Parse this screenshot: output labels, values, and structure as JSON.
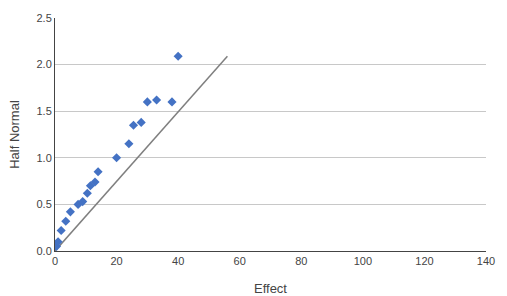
{
  "chart_data": {
    "type": "scatter",
    "xlabel": "Effect",
    "ylabel": "Half Normal",
    "series": [
      {
        "type": "line",
        "color": "#7f7f7f",
        "line_style": "solid",
        "x": [
          0,
          56
        ],
        "values": [
          0,
          2.09
        ]
      },
      {
        "type": "scatter",
        "color": "#4472C4",
        "marker": "diamond",
        "x": [
          0.5,
          1.0,
          2.0,
          3.5,
          5.0,
          7.5,
          9.0,
          10.5,
          11.5,
          13.0,
          14.0,
          20.0,
          24.0,
          25.5,
          28.0,
          30.0,
          33.0,
          38.0,
          40.0
        ],
        "values": [
          0.05,
          0.1,
          0.22,
          0.32,
          0.42,
          0.5,
          0.53,
          0.62,
          0.7,
          0.74,
          0.85,
          1.0,
          1.15,
          1.35,
          1.38,
          1.6,
          1.62,
          1.6,
          2.09
        ]
      }
    ],
    "xlim": [
      0,
      140
    ],
    "ylim": [
      0,
      2.5
    ],
    "xticks": [
      0,
      20,
      40,
      60,
      80,
      100,
      120,
      140
    ],
    "yticks": [
      {
        "value": 0,
        "label": "0.0"
      },
      0.5,
      {
        "value": 1.0,
        "label": "1.0"
      },
      1.5,
      {
        "value": 2.0,
        "label": "2.0"
      },
      2.5
    ],
    "grid": "y",
    "bg_color": "#ffffff",
    "grid_color": "#c8c8c8"
  }
}
